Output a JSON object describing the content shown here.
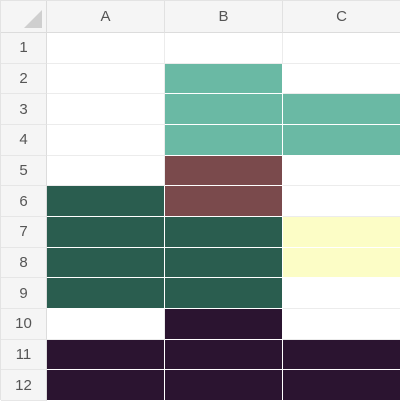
{
  "columns": [
    "A",
    "B",
    "C"
  ],
  "rows": [
    "1",
    "2",
    "3",
    "4",
    "5",
    "6",
    "7",
    "8",
    "9",
    "10",
    "11",
    "12"
  ],
  "colors": {
    "white": "#ffffff",
    "teal": "#6ab9a4",
    "maroon": "#7a4a4c",
    "dark_green": "#2a5d4f",
    "pale_yellow": "#fcfdc6",
    "dark_purple": "#2b1430"
  },
  "cells": [
    [
      "white",
      "white",
      "white"
    ],
    [
      "white",
      "teal",
      "white"
    ],
    [
      "white",
      "teal",
      "teal"
    ],
    [
      "white",
      "teal",
      "teal"
    ],
    [
      "white",
      "maroon",
      "white"
    ],
    [
      "dark_green",
      "maroon",
      "white"
    ],
    [
      "dark_green",
      "dark_green",
      "pale_yellow"
    ],
    [
      "dark_green",
      "dark_green",
      "pale_yellow"
    ],
    [
      "dark_green",
      "dark_green",
      "white"
    ],
    [
      "white",
      "dark_purple",
      "white"
    ],
    [
      "dark_purple",
      "dark_purple",
      "dark_purple"
    ],
    [
      "dark_purple",
      "dark_purple",
      "dark_purple"
    ]
  ]
}
